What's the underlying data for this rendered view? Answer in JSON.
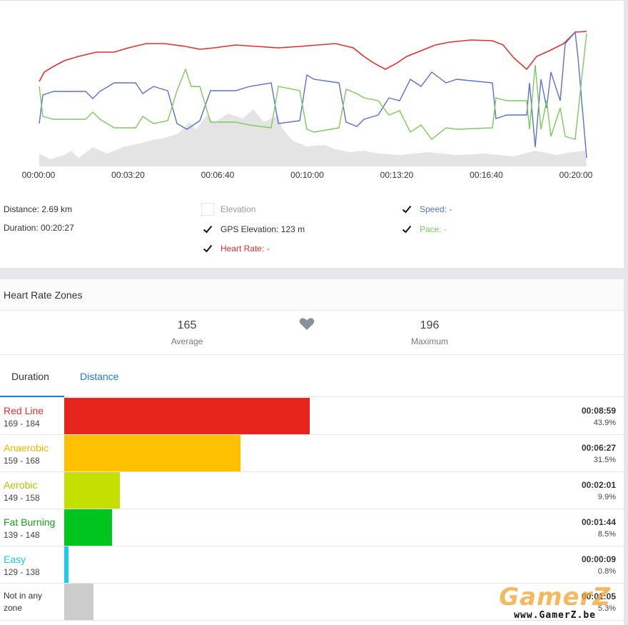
{
  "chart": {
    "x_ticks": [
      "00:00:00",
      "00:03:20",
      "00:06:40",
      "00:10:00",
      "00:13:20",
      "00:16:40",
      "00:20:00"
    ],
    "colors": {
      "elevation": "#e4e4e4",
      "speed": "#5a72c8",
      "pace": "#7dc95e",
      "heart_rate": "#e0312f"
    }
  },
  "stats": {
    "distance": "Distance:  2.69 km",
    "duration": "Duration:  00:20:27"
  },
  "legend": {
    "elevation": {
      "label": "Elevation",
      "checked": false
    },
    "gps_elevation": {
      "label": "GPS Elevation:  123 m",
      "checked": true
    },
    "heart_rate": {
      "label": "Heart Rate: -",
      "checked": true
    },
    "speed": {
      "label": "Speed: -",
      "checked": true
    },
    "pace": {
      "label": "Pace: -",
      "checked": true
    }
  },
  "zones_section": {
    "title": "Heart Rate Zones",
    "average_value": "165",
    "average_label": "Average",
    "maximum_value": "196",
    "maximum_label": "Maximum",
    "heart_icon": "heart-icon",
    "tabs": [
      "Duration",
      "Distance"
    ],
    "active_tab": "Duration"
  },
  "zones": [
    {
      "name": "Red Line",
      "range": "169 - 184",
      "time": "00:08:59",
      "pct": "43.9%",
      "fraction": 0.439,
      "color": "#e8251c",
      "label_color": "#e0312f"
    },
    {
      "name": "Anaerobic",
      "range": "159 - 168",
      "time": "00:06:27",
      "pct": "31.5%",
      "fraction": 0.315,
      "color": "#ffc000",
      "label_color": "#f0b400"
    },
    {
      "name": "Aerobic",
      "range": "149 - 158",
      "time": "00:02:01",
      "pct": "9.9%",
      "fraction": 0.099,
      "color": "#c3e000",
      "label_color": "#a8c800"
    },
    {
      "name": "Fat Burning",
      "range": "139 - 148",
      "time": "00:01:44",
      "pct": "8.5%",
      "fraction": 0.085,
      "color": "#00c51f",
      "label_color": "#1aa01a"
    },
    {
      "name": "Easy",
      "range": "129 - 138",
      "time": "00:00:09",
      "pct": "0.8%",
      "fraction": 0.008,
      "color": "#1ec8e6",
      "label_color": "#1ec8e6"
    },
    {
      "name": "Not in any zone",
      "range": "",
      "time": "00:01:05",
      "pct": "5.3%",
      "fraction": 0.053,
      "color": "#cccccc",
      "label_color": "#333333"
    }
  ],
  "watermark": {
    "big": "GamerZ",
    "small": "www.GamerZ.be"
  }
}
